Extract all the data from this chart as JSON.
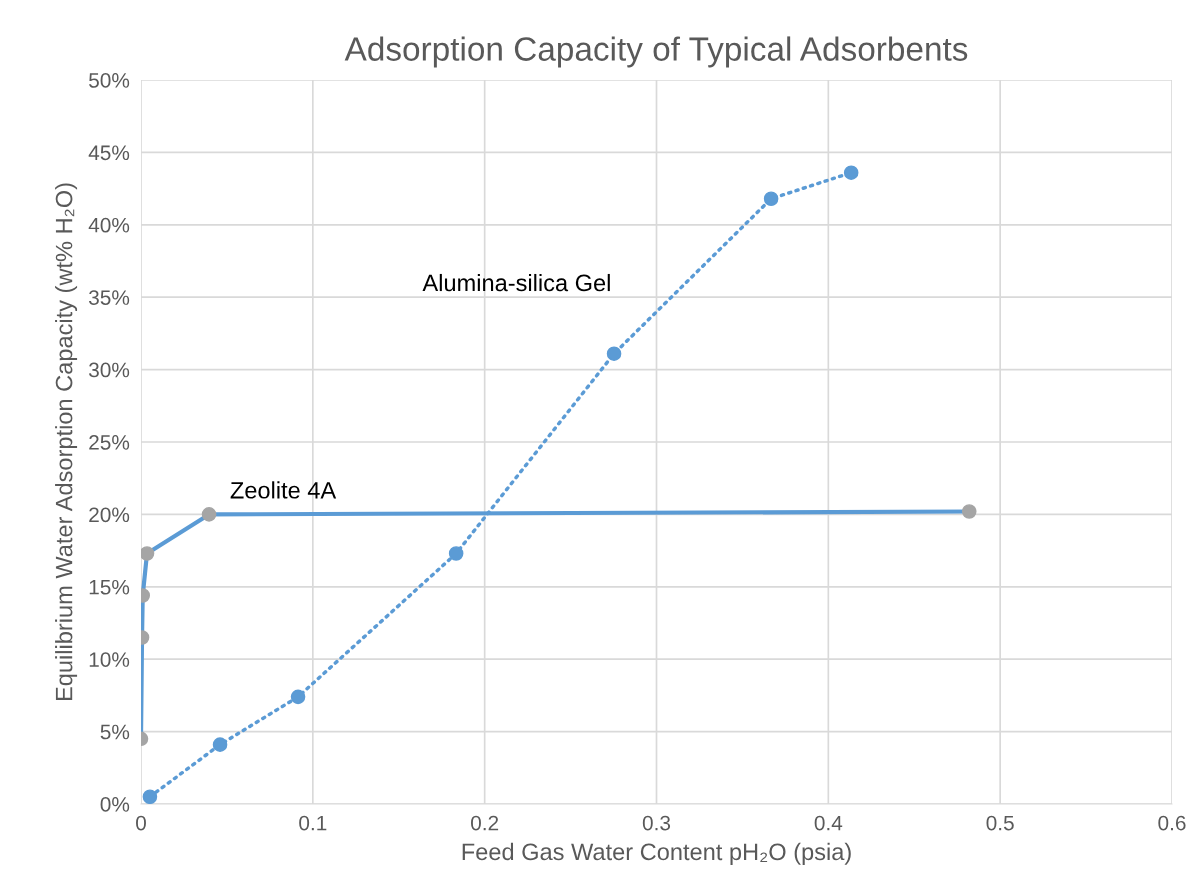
{
  "chart_data": {
    "type": "line",
    "title": "Adsorption Capacity of Typical Adsorbents",
    "xlabel": "Feed Gas Water Content pH₂O (psia)",
    "ylabel": "Equilibrium Water Adsorption Capacity (wt% H₂O)",
    "series": [
      {
        "name": "Zeolite 4A",
        "color": "#5b9bd5",
        "marker": "none",
        "line_style": "solid",
        "x": [
          0,
          0.0006,
          0.001,
          0.0035,
          0.0396,
          0.482
        ],
        "values": [
          4.5,
          11.5,
          14.4,
          17.3,
          20.0,
          20.2
        ]
      },
      {
        "type": "scatter",
        "color": "#a5a5a5",
        "marker": "circle",
        "x": [
          0,
          0.0006,
          0.001,
          0.0035,
          0.0396,
          0.482
        ],
        "values": [
          4.5,
          11.5,
          14.4,
          17.3,
          20.0,
          20.2
        ]
      },
      {
        "name": "Alumina-silica Gel",
        "color": "#5b9bd5",
        "marker": "circle",
        "line_style": "dotted",
        "x": [
          0.0052,
          0.046,
          0.0914,
          0.1834,
          0.2753,
          0.3667,
          0.4133
        ],
        "values": [
          0.5,
          4.1,
          7.4,
          17.3,
          31.1,
          41.8,
          43.6
        ]
      }
    ],
    "xlim": [
      0,
      0.6
    ],
    "xticks": [
      0,
      0.1,
      0.2,
      0.3,
      0.4,
      0.5,
      0.6
    ],
    "ylim": [
      0,
      50
    ],
    "yticks": [
      {
        "value": 0,
        "label": "0%"
      },
      {
        "value": 5,
        "label": "5%"
      },
      {
        "value": 10,
        "label": "10%"
      },
      {
        "value": 15,
        "label": "15%"
      },
      {
        "value": 20,
        "label": "20%"
      },
      {
        "value": 25,
        "label": "25%"
      },
      {
        "value": 30,
        "label": "30%"
      },
      {
        "value": 35,
        "label": "35%"
      },
      {
        "value": 40,
        "label": "40%"
      },
      {
        "value": 45,
        "label": "45%"
      },
      {
        "value": 50,
        "label": "50%"
      }
    ],
    "grid": true,
    "legend": false
  }
}
